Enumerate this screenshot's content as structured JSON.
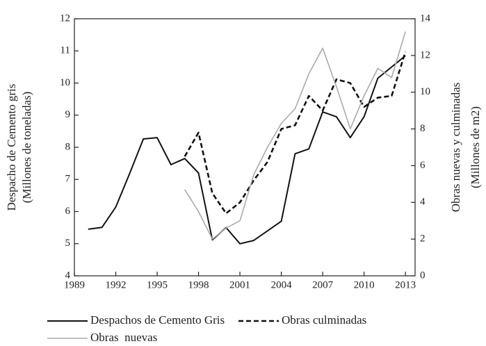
{
  "chart_data": {
    "type": "line",
    "ylabel": [
      "Despacho de Cemento gris",
      "(Millones de toneladas)"
    ],
    "y2label": [
      "Obras nuevas  y culminadas",
      "(Millones de m2)"
    ],
    "x": [
      1990,
      1991,
      1992,
      1993,
      1994,
      1995,
      1996,
      1997,
      1998,
      1999,
      2000,
      2001,
      2002,
      2003,
      2004,
      2005,
      2006,
      2007,
      2008,
      2009,
      2010,
      2011,
      2012,
      2013
    ],
    "series": [
      {
        "name": "Despachos de Cemento Gris",
        "color": "#111111",
        "style": "solid",
        "values": [
          5.45,
          5.51,
          6.14,
          7.18,
          8.26,
          8.3,
          7.46,
          7.65,
          7.2,
          5.12,
          5.5,
          5.0,
          5.1,
          5.4,
          5.7,
          7.8,
          7.95,
          9.1,
          8.95,
          8.3,
          8.95,
          10.15,
          10.5,
          10.85
        ]
      },
      {
        "name": "Obras culminadas",
        "color": "#111111",
        "style": "dashed",
        "axis": "y2",
        "values": [
          null,
          null,
          null,
          null,
          null,
          null,
          null,
          6.5,
          7.8,
          4.5,
          3.4,
          4.0,
          5.2,
          6.2,
          8.0,
          8.2,
          9.8,
          9.0,
          10.7,
          10.5,
          9.2,
          9.7,
          9.8,
          12.2
        ]
      },
      {
        "name": "Obras  nuevas",
        "color": "#aaaaaa",
        "style": "solid",
        "axis": "y2",
        "values": [
          null,
          null,
          null,
          null,
          null,
          null,
          null,
          4.7,
          3.5,
          2.0,
          2.6,
          3.0,
          5.5,
          7.0,
          8.3,
          9.1,
          11.0,
          12.4,
          10.3,
          8.0,
          9.8,
          11.3,
          10.8,
          13.3
        ]
      }
    ],
    "xlim": [
      1989,
      2013.7
    ],
    "xticks": [
      1989,
      1992,
      1995,
      1998,
      2001,
      2004,
      2007,
      2010,
      2013
    ],
    "ylim": [
      4,
      12
    ],
    "yticks": [
      4,
      5,
      6,
      7,
      8,
      9,
      10,
      11,
      12
    ],
    "y2lim": [
      0,
      14
    ],
    "y2ticks": [
      0,
      2,
      4,
      6,
      8,
      10,
      12,
      14
    ]
  }
}
